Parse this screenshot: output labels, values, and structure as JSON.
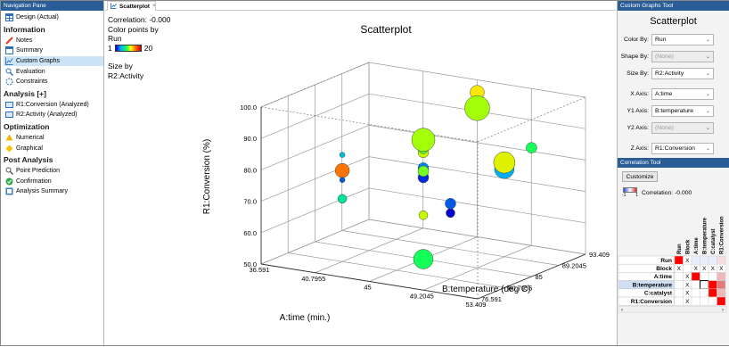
{
  "nav": {
    "title": "Navigation Pane",
    "design": "Design (Actual)",
    "sections": [
      {
        "heading": "Information",
        "items": [
          "Notes",
          "Summary",
          "Custom Graphs",
          "Evaluation",
          "Constraints"
        ]
      },
      {
        "heading": "Analysis [+]",
        "items": [
          "R1:Conversion (Analyzed)",
          "R2:Activity (Analyzed)"
        ]
      },
      {
        "heading": "Optimization",
        "items": [
          "Numerical",
          "Graphical"
        ]
      },
      {
        "heading": "Post Analysis",
        "items": [
          "Point Prediction",
          "Confirmation",
          "Analysis Summary"
        ]
      }
    ],
    "selected": "Custom Graphs"
  },
  "tab": {
    "label": "Scatterplot",
    "close": "×"
  },
  "plot_info": {
    "correlation": "Correlation: -0.000",
    "color_by_label": "Color points by",
    "color_by_value": "Run",
    "scale_min": "1",
    "scale_max": "20",
    "size_by_label": "Size by",
    "size_by_value": "R2:Activity"
  },
  "colors": {
    "header": "#2a5d96",
    "selection": "#cce4f7"
  },
  "chart_data": {
    "type": "scatter",
    "title": "Scatterplot",
    "xlabel": "A:time (min.)",
    "ylabel": "R1:Conversion (%)",
    "zlabel": "B:temperature (deg C)",
    "xticks": [
      "36.591",
      "40.7955",
      "45",
      "49.2045",
      "53.409"
    ],
    "zticks": [
      "76.591",
      "80.7955",
      "85",
      "89.2045",
      "93.409"
    ],
    "yticks": [
      "50.0",
      "60.0",
      "70.0",
      "80.0",
      "90.0",
      "100.0"
    ],
    "xlim": [
      36.591,
      53.409
    ],
    "zlim": [
      76.591,
      93.409
    ],
    "ylim": [
      50,
      100
    ],
    "color_by": "Run",
    "color_range": [
      1,
      20
    ],
    "points": [
      {
        "x": 45,
        "z": 93.4,
        "y": 96,
        "run": 16,
        "size": 8
      },
      {
        "x": 45,
        "z": 93.4,
        "y": 91,
        "run": 13,
        "size": 14
      },
      {
        "x": 53.4,
        "z": 85,
        "y": 91,
        "run": 10,
        "size": 6
      },
      {
        "x": 40.8,
        "z": 80.8,
        "y": 84,
        "run": 6,
        "size": 3
      },
      {
        "x": 45,
        "z": 85,
        "y": 86,
        "run": 9,
        "size": 5
      },
      {
        "x": 45,
        "z": 85,
        "y": 84,
        "run": 14,
        "size": 6
      },
      {
        "x": 45,
        "z": 85,
        "y": 85,
        "run": 11,
        "size": 5
      },
      {
        "x": 45,
        "z": 85,
        "y": 88,
        "run": 13,
        "size": 13
      },
      {
        "x": 45,
        "z": 85,
        "y": 79,
        "run": 4,
        "size": 6
      },
      {
        "x": 45,
        "z": 85,
        "y": 76,
        "run": 2,
        "size": 6
      },
      {
        "x": 40.8,
        "z": 80.8,
        "y": 79,
        "run": 18,
        "size": 8
      },
      {
        "x": 40.8,
        "z": 80.8,
        "y": 76,
        "run": 3,
        "size": 3
      },
      {
        "x": 40.8,
        "z": 80.8,
        "y": 70,
        "run": 8,
        "size": 5
      },
      {
        "x": 45,
        "z": 85,
        "y": 78,
        "run": 12,
        "size": 6
      },
      {
        "x": 49.2,
        "z": 89.2,
        "y": 78,
        "run": 5,
        "size": 11
      },
      {
        "x": 49.2,
        "z": 89.2,
        "y": 80,
        "run": 15,
        "size": 12
      },
      {
        "x": 49.2,
        "z": 80.8,
        "y": 71,
        "run": 1,
        "size": 5
      },
      {
        "x": 49.2,
        "z": 80.8,
        "y": 74,
        "run": 3,
        "size": 6
      },
      {
        "x": 45,
        "z": 85,
        "y": 64,
        "run": 14,
        "size": 5
      },
      {
        "x": 45,
        "z": 85,
        "y": 50,
        "run": 10,
        "size": 11
      }
    ]
  },
  "tools": {
    "title": "Custom Graphs Tool",
    "heading": "Scatterplot",
    "fields": [
      {
        "label": "Color By:",
        "value": "Run",
        "disabled": false
      },
      {
        "label": "Shape By:",
        "value": "(None)",
        "disabled": true
      },
      {
        "label": "Size By:",
        "value": "R2:Activity",
        "disabled": false
      },
      {
        "label": "X Axis:",
        "value": "A:time",
        "disabled": false
      },
      {
        "label": "Y1 Axis:",
        "value": "B:temperature",
        "disabled": false
      },
      {
        "label": "Y2 Axis:",
        "value": "(None)",
        "disabled": true
      },
      {
        "label": "Z Axis:",
        "value": "R1:Conversion",
        "disabled": false
      }
    ]
  },
  "corr_tool": {
    "title": "Correlation Tool",
    "customize": "Customize",
    "legend_min": "-1",
    "legend_max": "1",
    "correlation": "Correlation: -0.000",
    "columns": [
      "Run",
      "Block",
      "A:time",
      "B:temperature",
      "C:catalyst",
      "R1:Conversion"
    ],
    "rows": [
      "Run",
      "Block",
      "A:time",
      "B:temperature",
      "C:catalyst",
      "R1:Conversion"
    ],
    "cell_mark": "X"
  }
}
